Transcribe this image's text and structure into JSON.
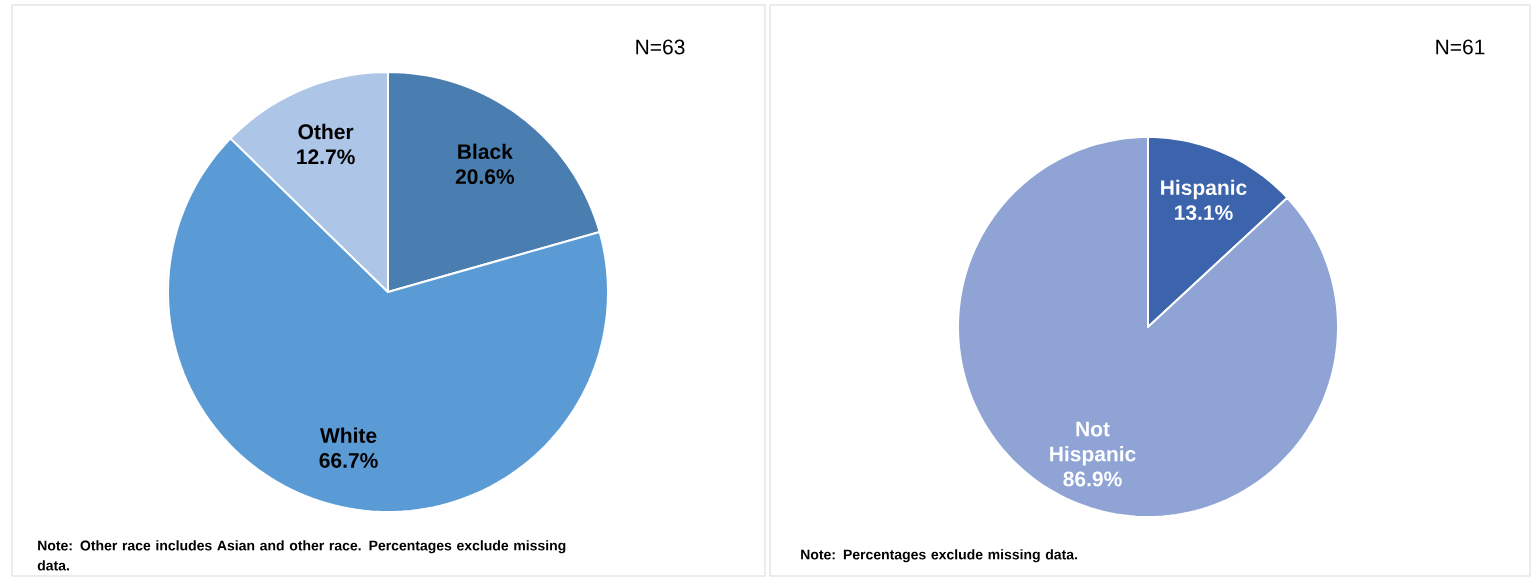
{
  "chart_data": [
    {
      "type": "pie",
      "categories": [
        "Black",
        "White",
        "Other"
      ],
      "values": [
        20.6,
        66.7,
        12.7
      ],
      "colors": [
        "#4a7eb0",
        "#5b9bd5",
        "#adc5e7"
      ],
      "value_labels": [
        "20.6%",
        "66.7%",
        "12.7%"
      ],
      "annotations": [
        "N=63",
        "Note: Other race includes Asian and other race. Percentages exclude missing data."
      ]
    },
    {
      "type": "pie",
      "categories": [
        "Hispanic",
        "Not Hispanic"
      ],
      "values": [
        13.1,
        86.9
      ],
      "colors": [
        "#3c64ac",
        "#8fa3d5"
      ],
      "value_labels": [
        "13.1%",
        "86.9%"
      ],
      "annotations": [
        "N=61",
        "Note: Percentages exclude missing data."
      ]
    }
  ]
}
